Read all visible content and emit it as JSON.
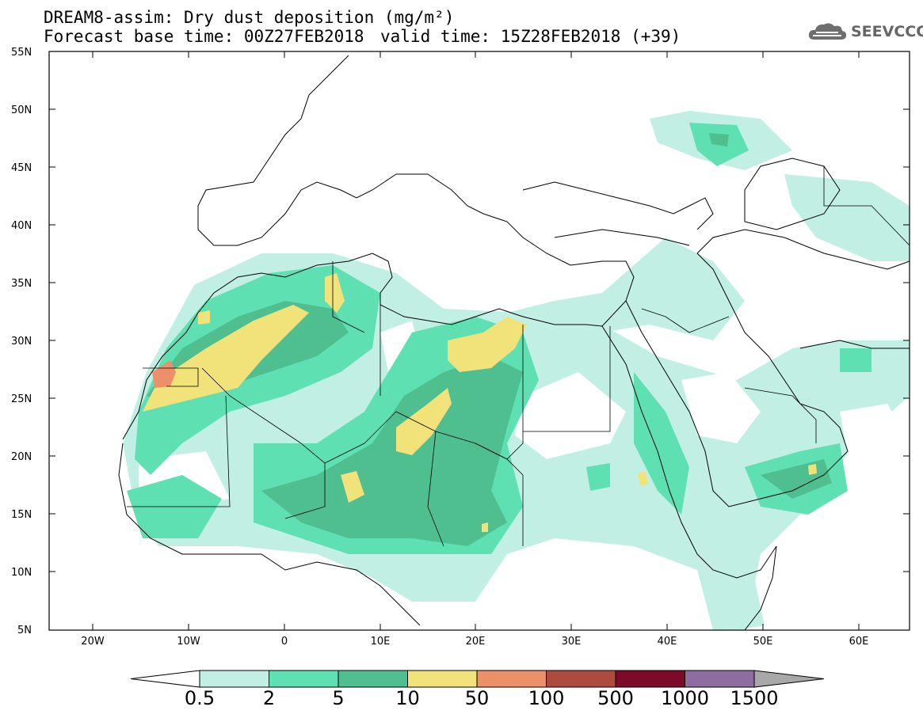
{
  "header": {
    "title": "DREAM8-assim: Dry dust deposition (mg/m²)",
    "forecast": "Forecast base time: 00Z27FEB2018",
    "valid": "valid time: 15Z28FEB2018 (+39)"
  },
  "logo": {
    "text": "SEEVCCC",
    "icon": "cloud-icon"
  },
  "axes": {
    "lat_labels": [
      "55N",
      "50N",
      "45N",
      "40N",
      "35N",
      "30N",
      "25N",
      "20N",
      "15N",
      "10N",
      "5N"
    ],
    "lon_labels": [
      "20W",
      "10W",
      "0",
      "10E",
      "20E",
      "30E",
      "40E",
      "50E",
      "60E"
    ]
  },
  "legend": {
    "labels": [
      "0.5",
      "2",
      "5",
      "10",
      "50",
      "100",
      "500",
      "1000",
      "1500"
    ],
    "colors": [
      "#c1efe4",
      "#5fe0b3",
      "#4fbf90",
      "#f2e27a",
      "#ec9069",
      "#ad4b3e",
      "#7e0a2a",
      "#8e6da0",
      "#a8a8a8"
    ]
  },
  "map_data": {
    "projection": "lat-lon",
    "lon_range": [
      -25,
      65
    ],
    "lat_range": [
      5,
      55
    ],
    "variable": "dry dust deposition",
    "units": "mg/m²"
  }
}
